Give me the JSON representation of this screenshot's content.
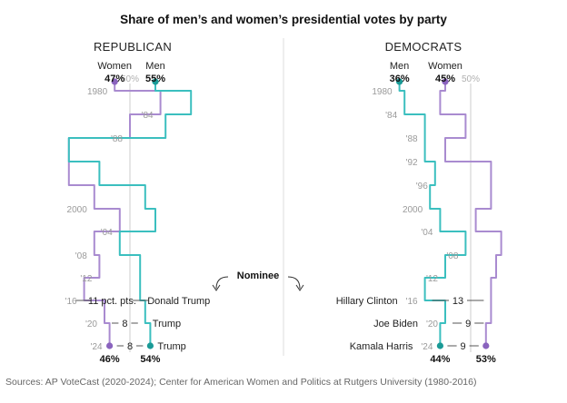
{
  "title": "Share of men’s and women’s presidential votes by party",
  "source": "Sources: AP VoteCast (2020-2024); Center for American Women and Politics at Rutgers University (1980-2016)",
  "nominee_label": "Nominee",
  "colors": {
    "men": "#3bbfbf",
    "women": "#a98bd0",
    "men_dark": "#1a9a96",
    "women_dark": "#8a63be",
    "overlap": "#2a5f7a",
    "ref": "#cccccc"
  },
  "chart_data": [
    {
      "type": "line",
      "title": "REPUBLICAN",
      "x_label": "50%",
      "years": [
        "1980",
        "1984",
        "1988",
        "1992",
        "1996",
        "2000",
        "2004",
        "2008",
        "2012",
        "2016",
        "2020",
        "2024"
      ],
      "year_labels": [
        "1980",
        "'84",
        "'88",
        "",
        "",
        "2000",
        "'04",
        "'08",
        "'12",
        "'16",
        "'20",
        "'24"
      ],
      "series": [
        {
          "name": "Men",
          "values": [
            55,
            62,
            57,
            38,
            44,
            53,
            55,
            48,
            52,
            52,
            53,
            54
          ]
        },
        {
          "name": "Women",
          "values": [
            47,
            56,
            50,
            38,
            38,
            43,
            48,
            43,
            44,
            41,
            45,
            46
          ]
        }
      ],
      "start_labels": {
        "Men": "55%",
        "Women": "47%"
      },
      "end_labels": {
        "Men": "54%",
        "Women": "46%"
      },
      "gaps": [
        {
          "year": "2016",
          "label": "11 pct. pts.",
          "candidate": "Donald Trump"
        },
        {
          "year": "2020",
          "label": "8",
          "candidate": "Trump"
        },
        {
          "year": "2024",
          "label": "8",
          "candidate": "Trump"
        }
      ]
    },
    {
      "type": "line",
      "title": "DEMOCRATS",
      "x_label": "50%",
      "years": [
        "1980",
        "1984",
        "1988",
        "1992",
        "1996",
        "2000",
        "2004",
        "2008",
        "2012",
        "2016",
        "2020",
        "2024"
      ],
      "year_labels": [
        "1980",
        "'84",
        "'88",
        "'92",
        "'96",
        "2000",
        "'04",
        "'08",
        "'12",
        "'16",
        "'20",
        "'24"
      ],
      "series": [
        {
          "name": "Men",
          "values": [
            36,
            37,
            41,
            41,
            43,
            42,
            44,
            49,
            45,
            41,
            45,
            44
          ]
        },
        {
          "name": "Women",
          "values": [
            45,
            44,
            49,
            45,
            54,
            54,
            51,
            56,
            55,
            54,
            54,
            53
          ]
        }
      ],
      "start_labels": {
        "Men": "36%",
        "Women": "45%"
      },
      "end_labels": {
        "Men": "44%",
        "Women": "53%"
      },
      "gaps": [
        {
          "year": "2016",
          "label": "13",
          "candidate": "Hillary Clinton"
        },
        {
          "year": "2020",
          "label": "9",
          "candidate": "Joe Biden"
        },
        {
          "year": "2024",
          "label": "9",
          "candidate": "Kamala Harris"
        }
      ]
    }
  ]
}
